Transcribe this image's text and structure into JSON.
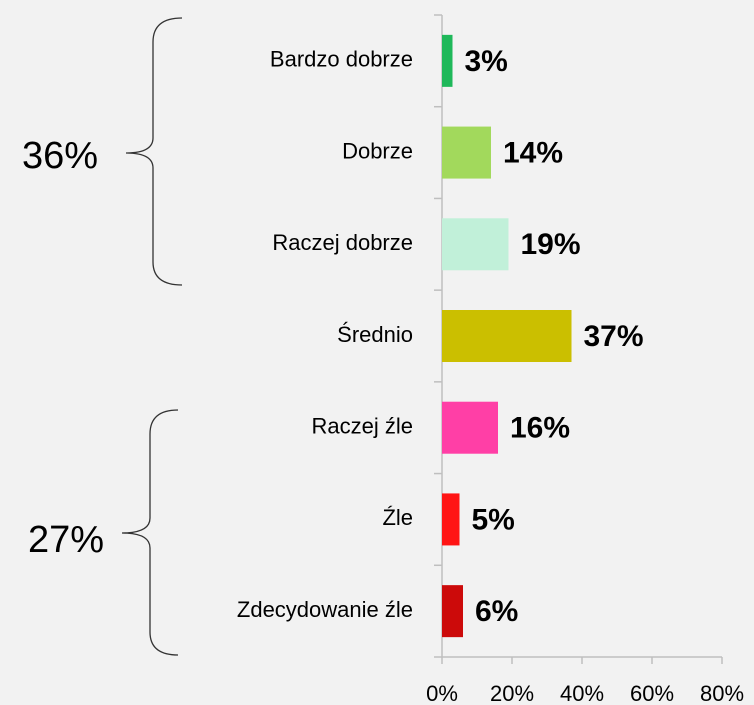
{
  "chart_data": {
    "type": "bar",
    "orientation": "horizontal",
    "categories": [
      "Bardzo dobrze",
      "Dobrze",
      "Raczej dobrze",
      "Średnio",
      "Raczej źle",
      "Źle",
      "Zdecydowanie źle"
    ],
    "values": [
      3,
      14,
      19,
      37,
      16,
      5,
      6
    ],
    "value_labels": [
      "3%",
      "14%",
      "19%",
      "37%",
      "16%",
      "5%",
      "6%"
    ],
    "colors": [
      "#1fb85a",
      "#a2d95c",
      "#c1f0d9",
      "#cbbf00",
      "#ff3fa6",
      "#ff1414",
      "#cc0a0a"
    ],
    "xlim": [
      0,
      80
    ],
    "xticks": [
      {
        "value": 0,
        "label": "0%"
      },
      {
        "value": 20,
        "label": "20%"
      },
      {
        "value": 40,
        "label": "40%"
      },
      {
        "value": 60,
        "label": "60%"
      },
      {
        "value": 80,
        "label": "80%"
      }
    ],
    "annotations": [
      {
        "text": "36%",
        "color": "#2e7d5b"
      },
      {
        "text": "27%",
        "color": "#c00000"
      }
    ]
  }
}
